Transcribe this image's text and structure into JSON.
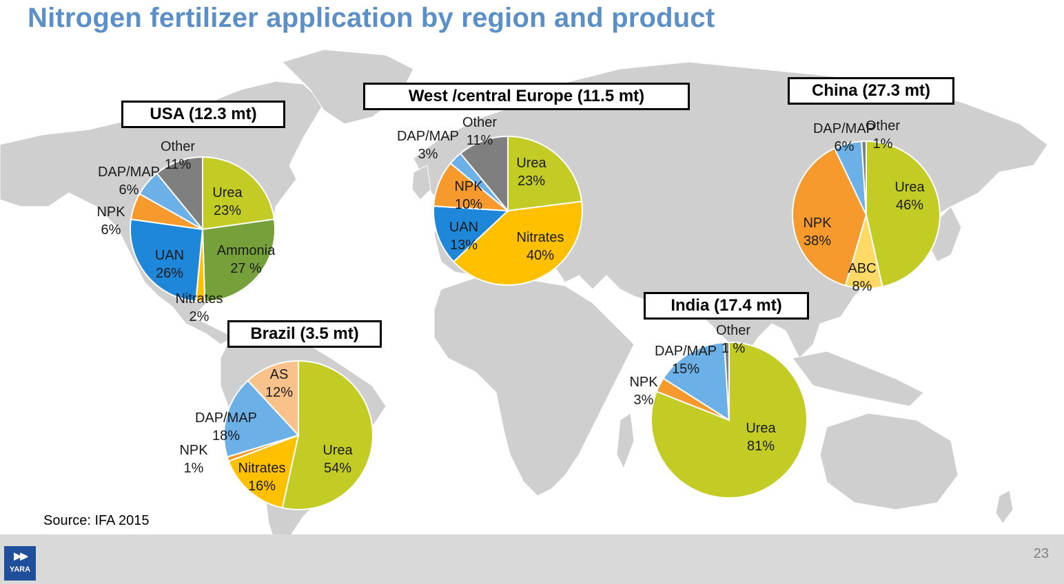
{
  "title": "Nitrogen fertilizer application by region and product",
  "source": "Source: IFA 2015",
  "page_number": "23",
  "logo_text": "YARA",
  "colors": {
    "title": "#5b8fc7",
    "map": "#cfcfcf",
    "footer": "#d9d9d9",
    "Urea": "#c3cc25",
    "Ammonia": "#75a03a",
    "Nitrates": "#ffc000",
    "UAN": "#1f87d9",
    "NPK": "#f79a2d",
    "DAP/MAP": "#6cb0e8",
    "Other": "#7f7f7f",
    "AS": "#f8c28a",
    "ABC": "#ffd966"
  },
  "regions": {
    "usa": "USA (12.3 mt)",
    "europe": "West /central Europe (11.5 mt)",
    "china": "China (27.3 mt)",
    "india": "India (17.4 mt)",
    "brazil": "Brazil (3.5 mt)"
  },
  "chart_data": [
    {
      "type": "pie",
      "title": "USA (12.3 mt)",
      "slices": [
        {
          "name": "Urea",
          "value": 23,
          "label": "23%"
        },
        {
          "name": "Ammonia",
          "value": 27,
          "label": "27 %"
        },
        {
          "name": "Nitrates",
          "value": 2,
          "label": "2%"
        },
        {
          "name": "UAN",
          "value": 26,
          "label": "26%"
        },
        {
          "name": "NPK",
          "value": 6,
          "label": "6%"
        },
        {
          "name": "DAP/MAP",
          "value": 6,
          "label": "6%"
        },
        {
          "name": "Other",
          "value": 11,
          "label": "11%"
        }
      ]
    },
    {
      "type": "pie",
      "title": "West /central Europe (11.5 mt)",
      "slices": [
        {
          "name": "Urea",
          "value": 23,
          "label": "23%"
        },
        {
          "name": "Nitrates",
          "value": 40,
          "label": "40%"
        },
        {
          "name": "UAN",
          "value": 13,
          "label": "13%"
        },
        {
          "name": "NPK",
          "value": 10,
          "label": "10%"
        },
        {
          "name": "DAP/MAP",
          "value": 3,
          "label": "3%"
        },
        {
          "name": "Other",
          "value": 11,
          "label": "11%"
        }
      ]
    },
    {
      "type": "pie",
      "title": "China (27.3 mt)",
      "slices": [
        {
          "name": "Urea",
          "value": 46,
          "label": "46%"
        },
        {
          "name": "ABC",
          "value": 8,
          "label": "8%"
        },
        {
          "name": "NPK",
          "value": 38,
          "label": "38%"
        },
        {
          "name": "DAP/MAP",
          "value": 6,
          "label": "6%"
        },
        {
          "name": "Other",
          "value": 1,
          "label": "1%"
        }
      ]
    },
    {
      "type": "pie",
      "title": "India (17.4 mt)",
      "slices": [
        {
          "name": "Urea",
          "value": 81,
          "label": "81%"
        },
        {
          "name": "NPK",
          "value": 3,
          "label": "3%"
        },
        {
          "name": "DAP/MAP",
          "value": 15,
          "label": "15%"
        },
        {
          "name": "Other",
          "value": 1,
          "label": "1 %"
        }
      ]
    },
    {
      "type": "pie",
      "title": "Brazil (3.5 mt)",
      "slices": [
        {
          "name": "Urea",
          "value": 54,
          "label": "54%"
        },
        {
          "name": "Nitrates",
          "value": 16,
          "label": "16%"
        },
        {
          "name": "NPK",
          "value": 1,
          "label": "1%"
        },
        {
          "name": "DAP/MAP",
          "value": 18,
          "label": "18%"
        },
        {
          "name": "AS",
          "value": 12,
          "label": "12%"
        }
      ]
    }
  ]
}
